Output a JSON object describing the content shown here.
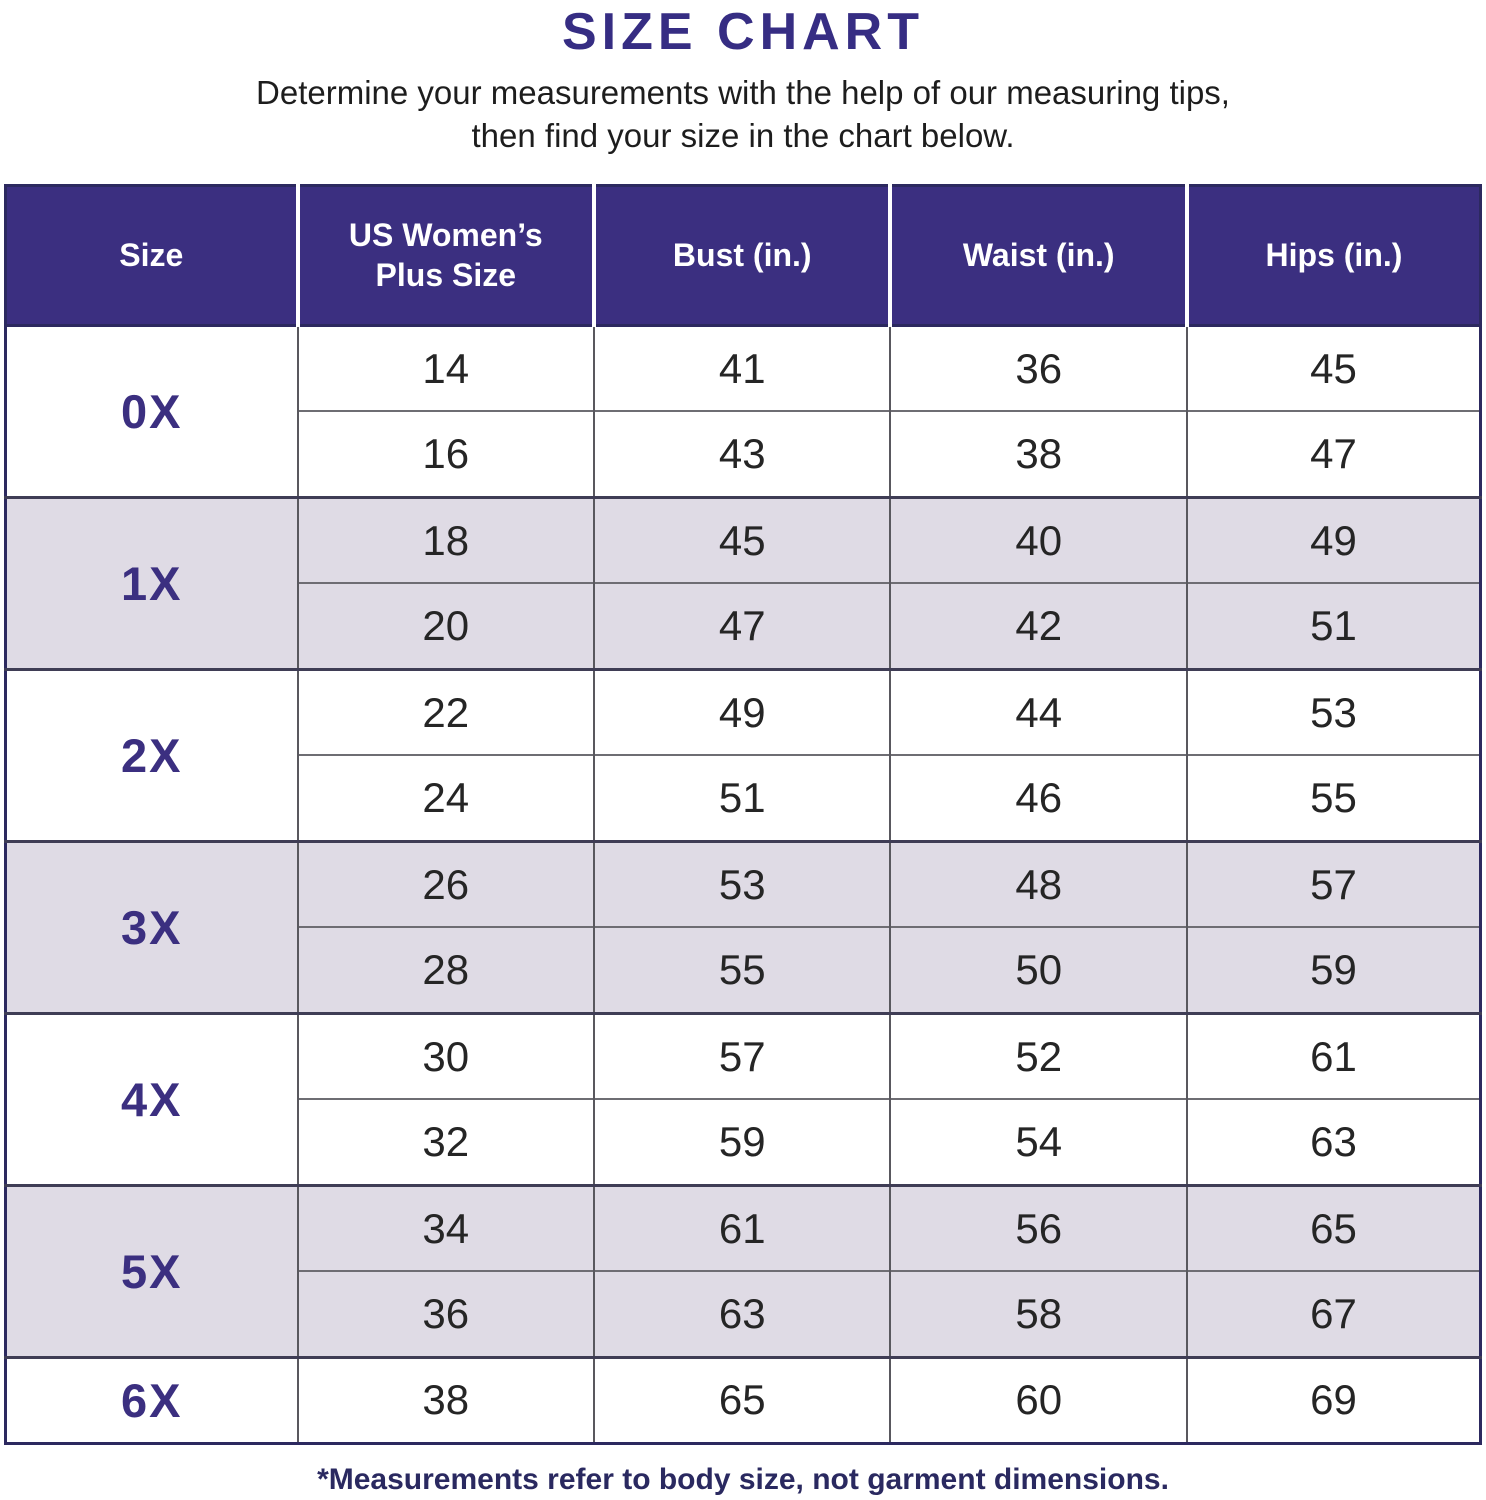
{
  "page": {
    "title": "SIZE CHART",
    "subtitle_line1": "Determine your measurements with the help of our measuring tips,",
    "subtitle_line2": "then find your size in the chart below.",
    "footnote": "*Measurements refer to body size, not garment dimensions."
  },
  "colors": {
    "header_bg": "#3b2f80",
    "title_text": "#362d83",
    "size_label_text": "#3b2f80",
    "shaded_row_bg": "#dfdbe5",
    "body_grid_line": "#59585e",
    "group_separator": "#3f3d55",
    "table_frame": "#2c295f",
    "footnote_text": "#2a2960"
  },
  "table": {
    "headers": [
      "Size",
      "US Women’s Plus Size",
      "Bust (in.)",
      "Waist (in.)",
      "Hips (in.)"
    ],
    "groups": [
      {
        "size": "0X",
        "rows": [
          [
            "14",
            "41",
            "36",
            "45"
          ],
          [
            "16",
            "43",
            "38",
            "47"
          ]
        ]
      },
      {
        "size": "1X",
        "rows": [
          [
            "18",
            "45",
            "40",
            "49"
          ],
          [
            "20",
            "47",
            "42",
            "51"
          ]
        ]
      },
      {
        "size": "2X",
        "rows": [
          [
            "22",
            "49",
            "44",
            "53"
          ],
          [
            "24",
            "51",
            "46",
            "55"
          ]
        ]
      },
      {
        "size": "3X",
        "rows": [
          [
            "26",
            "53",
            "48",
            "57"
          ],
          [
            "28",
            "55",
            "50",
            "59"
          ]
        ]
      },
      {
        "size": "4X",
        "rows": [
          [
            "30",
            "57",
            "52",
            "61"
          ],
          [
            "32",
            "59",
            "54",
            "63"
          ]
        ]
      },
      {
        "size": "5X",
        "rows": [
          [
            "34",
            "61",
            "56",
            "65"
          ],
          [
            "36",
            "63",
            "58",
            "67"
          ]
        ]
      },
      {
        "size": "6X",
        "rows": [
          [
            "38",
            "65",
            "60",
            "69"
          ]
        ]
      }
    ]
  },
  "chart_data": {
    "type": "table",
    "title": "SIZE CHART",
    "subtitle": "Determine your measurements with the help of our measuring tips, then find your size in the chart below.",
    "columns": [
      "Size",
      "US Women’s Plus Size",
      "Bust (in.)",
      "Waist (in.)",
      "Hips (in.)"
    ],
    "rows": [
      [
        "0X",
        14,
        41,
        36,
        45
      ],
      [
        "0X",
        16,
        43,
        38,
        47
      ],
      [
        "1X",
        18,
        45,
        40,
        49
      ],
      [
        "1X",
        20,
        47,
        42,
        51
      ],
      [
        "2X",
        22,
        49,
        44,
        53
      ],
      [
        "2X",
        24,
        51,
        46,
        55
      ],
      [
        "3X",
        26,
        53,
        48,
        57
      ],
      [
        "3X",
        28,
        55,
        50,
        59
      ],
      [
        "4X",
        30,
        57,
        52,
        61
      ],
      [
        "4X",
        32,
        59,
        54,
        63
      ],
      [
        "5X",
        34,
        61,
        56,
        65
      ],
      [
        "5X",
        36,
        63,
        58,
        67
      ],
      [
        "6X",
        38,
        65,
        60,
        69
      ]
    ],
    "footnote": "*Measurements refer to body size, not garment dimensions.",
    "layout": {
      "grid": true,
      "alternating_group_shading": true,
      "header_position": "top"
    }
  }
}
